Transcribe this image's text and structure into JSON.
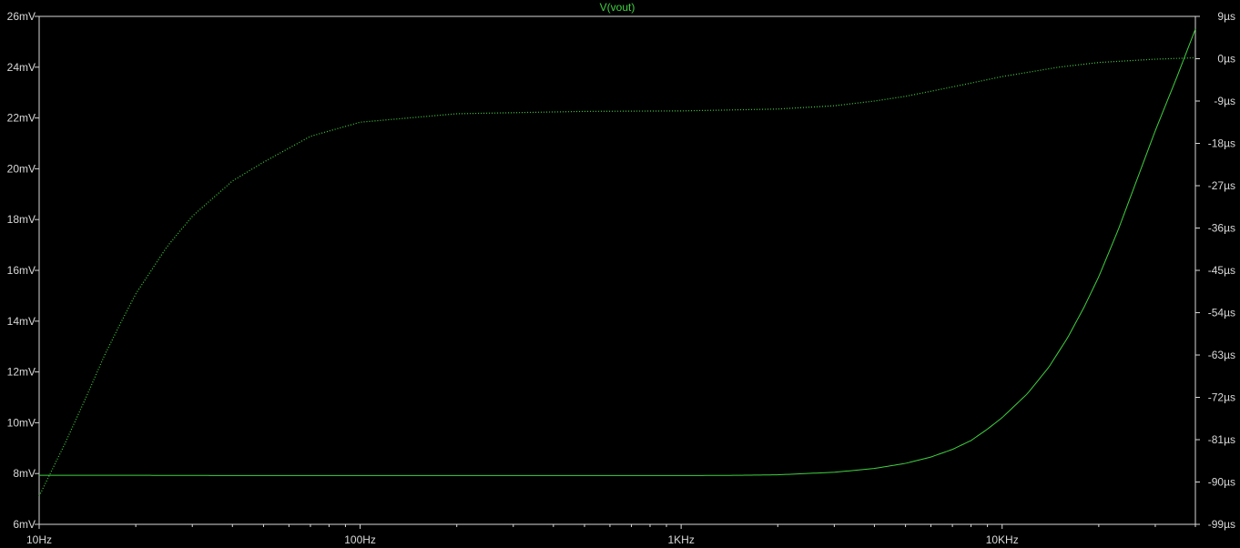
{
  "chart_data": {
    "type": "line",
    "title": "V(vout)",
    "x_scale": "log",
    "xlim": [
      10,
      40000
    ],
    "x_ticks": [
      10,
      100,
      1000,
      10000
    ],
    "x_tick_labels": [
      "10Hz",
      "100Hz",
      "1KHz",
      "10KHz"
    ],
    "ylim_left": [
      6,
      26
    ],
    "y_ticks_left": [
      6,
      8,
      10,
      12,
      14,
      16,
      18,
      20,
      22,
      24,
      26
    ],
    "y_tick_labels_left": [
      "6mV",
      "8mV",
      "10mV",
      "12mV",
      "14mV",
      "16mV",
      "18mV",
      "20mV",
      "22mV",
      "24mV",
      "26mV"
    ],
    "ylim_right": [
      -99,
      9
    ],
    "y_ticks_right": [
      -99,
      -90,
      -81,
      -72,
      -63,
      -54,
      -45,
      -36,
      -27,
      -18,
      -9,
      0,
      9
    ],
    "y_tick_labels_right": [
      "-99µs",
      "-90µs",
      "-81µs",
      "-72µs",
      "-63µs",
      "-54µs",
      "-45µs",
      "-36µs",
      "-27µs",
      "-18µs",
      "-9µs",
      "0µs",
      "9µs"
    ],
    "grid": false,
    "colors": {
      "background": "#000000",
      "frame": "#d8d8d8",
      "trace": "#3fd23f",
      "title": "#3fd23f"
    },
    "series": [
      {
        "axis": "left",
        "style": "solid",
        "x": [
          10,
          20,
          50,
          100,
          200,
          500,
          1000,
          1500,
          2000,
          3000,
          4000,
          5000,
          6000,
          7000,
          8000,
          9000,
          10000,
          12000,
          14000,
          16000,
          18000,
          20000,
          23000,
          26000,
          30000,
          35000,
          40000
        ],
        "values": [
          7.93,
          7.93,
          7.92,
          7.92,
          7.92,
          7.92,
          7.92,
          7.93,
          7.95,
          8.05,
          8.2,
          8.4,
          8.65,
          8.95,
          9.3,
          9.75,
          10.2,
          11.15,
          12.2,
          13.35,
          14.55,
          15.75,
          17.6,
          19.4,
          21.5,
          23.6,
          25.5
        ]
      },
      {
        "axis": "right",
        "style": "dotted",
        "x": [
          10,
          12,
          14,
          16,
          18,
          20,
          25,
          30,
          40,
          50,
          70,
          100,
          200,
          500,
          1000,
          2000,
          3000,
          4000,
          5000,
          7000,
          10000,
          15000,
          20000,
          30000,
          40000
        ],
        "values": [
          -93,
          -82,
          -72,
          -63,
          -56,
          -50,
          -40,
          -33.5,
          -26,
          -22,
          -16.5,
          -13.5,
          -11.7,
          -11.2,
          -11.1,
          -10.7,
          -10,
          -9,
          -8,
          -6,
          -3.8,
          -1.8,
          -0.8,
          -0.1,
          0.2
        ]
      }
    ]
  }
}
